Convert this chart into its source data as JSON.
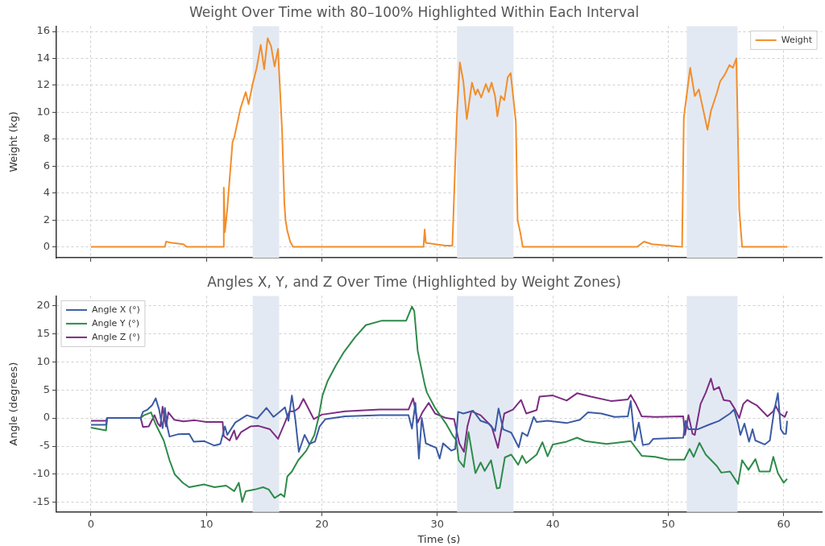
{
  "chart_data": [
    {
      "type": "line",
      "title": "Weight Over Time with 80–100% Highlighted Within Each Interval",
      "ylabel": "Weight (kg)",
      "xlim": [
        -3,
        63.3
      ],
      "xticks": [
        0,
        10,
        20,
        30,
        40,
        50,
        60
      ],
      "ylim": [
        -0.8,
        16.4
      ],
      "yticks": [
        0,
        2,
        4,
        6,
        8,
        10,
        12,
        14,
        16
      ],
      "tick_labels": "y",
      "grid": true,
      "legend": "top right",
      "marker": "none",
      "line_style": "solid",
      "bands": [
        {
          "axis": "x",
          "from": 14.0,
          "to": 16.3,
          "color": "#e3e9f3"
        },
        {
          "axis": "x",
          "from": 31.7,
          "to": 36.6,
          "color": "#e3e9f3"
        },
        {
          "axis": "x",
          "from": 51.6,
          "to": 56.0,
          "color": "#e3e9f3"
        }
      ],
      "series": [
        {
          "name": "Weight",
          "color": "#f28e2b",
          "x": [
            0,
            6.4,
            6.5,
            7,
            8,
            8.3,
            11.45,
            11.5,
            11.6,
            11.8,
            12.26,
            12.4,
            12.6,
            12.95,
            13.4,
            13.65,
            14.0,
            14.35,
            14.7,
            15.0,
            15.3,
            15.6,
            15.9,
            16.2,
            16.3,
            16.55,
            16.75,
            16.85,
            17.0,
            17.25,
            17.5,
            28.8,
            28.9,
            29.0,
            29.8,
            30.7,
            31.3,
            31.7,
            31.95,
            32.25,
            32.55,
            33.0,
            33.3,
            33.5,
            33.8,
            34.2,
            34.45,
            34.7,
            35.0,
            35.2,
            35.5,
            35.8,
            36.1,
            36.35,
            36.6,
            36.8,
            36.95,
            37.2,
            37.4,
            47.3,
            47.9,
            48.6,
            50.0,
            51.2,
            51.35,
            51.9,
            52.3,
            52.65,
            53.0,
            53.4,
            53.7,
            54.2,
            54.5,
            54.9,
            55.3,
            55.6,
            55.9,
            56.0,
            56.15,
            56.4,
            60.3
          ],
          "values": [
            0,
            0,
            0.4,
            0.3,
            0.2,
            0,
            0,
            4.4,
            1.1,
            2.8,
            7.8,
            8.1,
            8.9,
            10.3,
            11.5,
            10.6,
            12.1,
            13.3,
            15.0,
            13.2,
            15.5,
            14.9,
            13.4,
            14.7,
            12.9,
            8.6,
            3.2,
            2.0,
            1.2,
            0.4,
            0,
            0,
            1.3,
            0.3,
            0.2,
            0.1,
            0.1,
            9.9,
            13.7,
            12.3,
            9.5,
            12.2,
            11.3,
            11.7,
            11.1,
            12.1,
            11.5,
            12.2,
            11.2,
            9.7,
            11.2,
            10.9,
            12.6,
            12.9,
            10.9,
            9.3,
            2.0,
            1.0,
            0,
            0,
            0.4,
            0.2,
            0.1,
            0,
            9.6,
            13.3,
            11.2,
            11.7,
            10.3,
            8.7,
            10.1,
            11.4,
            12.3,
            12.8,
            13.5,
            13.3,
            14.0,
            9.9,
            2.8,
            0,
            0
          ]
        }
      ]
    },
    {
      "type": "line",
      "title": "Angles X, Y, and Z Over Time (Highlighted by Weight Zones)",
      "xlabel": "Time (s)",
      "ylabel": "Angle (degrees)",
      "xlim": [
        -3,
        63.3
      ],
      "xticks": [
        0,
        10,
        20,
        30,
        40,
        50,
        60
      ],
      "ylim": [
        -16.7,
        21.7
      ],
      "yticks": [
        -15,
        -10,
        -5,
        0,
        5,
        10,
        15,
        20
      ],
      "grid": true,
      "legend": "top left",
      "marker": "none",
      "line_style": "solid",
      "bands": [
        {
          "axis": "x",
          "from": 14.0,
          "to": 16.3,
          "color": "#e3e9f3"
        },
        {
          "axis": "x",
          "from": 31.7,
          "to": 36.6,
          "color": "#e3e9f3"
        },
        {
          "axis": "x",
          "from": 51.6,
          "to": 56.0,
          "color": "#e3e9f3"
        }
      ],
      "series": [
        {
          "name": "Angle X (°)",
          "color": "#3b5ba5",
          "x": [
            0,
            1.3,
            1.4,
            4.3,
            4.5,
            4.9,
            5.3,
            5.6,
            5.9,
            6.2,
            6.4,
            6.6,
            6.8,
            7.5,
            8.5,
            8.9,
            9.8,
            10.7,
            11.2,
            11.6,
            11.8,
            12.5,
            13.5,
            14.4,
            15.2,
            15.8,
            16.3,
            16.8,
            17.1,
            17.4,
            17.7,
            18.0,
            18.5,
            18.9,
            19.4,
            19.8,
            20.3,
            22,
            25,
            27.5,
            27.8,
            28.1,
            28.4,
            28.65,
            29.0,
            29.9,
            30.2,
            30.5,
            31.2,
            31.55,
            31.8,
            32.25,
            33.1,
            33.75,
            34.45,
            35.0,
            35.3,
            35.7,
            36.4,
            37.05,
            37.35,
            37.8,
            38.35,
            38.6,
            39.55,
            41.2,
            42.35,
            43.05,
            44.2,
            45.35,
            46.5,
            46.75,
            47.1,
            47.45,
            47.8,
            48.35,
            48.7,
            50.0,
            51.3,
            51.5,
            51.75,
            52.55,
            53.5,
            54.4,
            55.35,
            55.7,
            56.05,
            56.25,
            56.6,
            57.0,
            57.3,
            57.55,
            58.35,
            58.8,
            59.15,
            59.5,
            59.75,
            60.0,
            60.2,
            60.3
          ],
          "values": [
            -1.2,
            -1.2,
            0,
            0,
            1.1,
            1.5,
            2.3,
            3.5,
            1.5,
            -1.8,
            1.8,
            -1.5,
            -3.3,
            -2.9,
            -2.8,
            -4.2,
            -4.1,
            -4.9,
            -4.6,
            -1.5,
            -3.0,
            -0.8,
            0.5,
            -0.1,
            1.8,
            0.2,
            1.0,
            1.9,
            -0.5,
            4.0,
            -0.3,
            -6.0,
            -3.0,
            -4.6,
            -4.2,
            -1.5,
            -0.2,
            0.3,
            0.5,
            0.5,
            -1.9,
            2.7,
            -7.2,
            0,
            -4.5,
            -5.3,
            -7.2,
            -4.5,
            -5.8,
            -5.5,
            1.1,
            0.8,
            1.3,
            -0.5,
            -1.0,
            -2.3,
            1.7,
            -2.0,
            -2.6,
            -5.2,
            -2.6,
            -3.2,
            0.2,
            -0.7,
            -0.5,
            -0.9,
            -0.3,
            1.0,
            0.8,
            0.2,
            0.3,
            3.0,
            -4.0,
            -0.8,
            -4.8,
            -4.6,
            -3.7,
            -3.6,
            -3.5,
            -0.5,
            -2.0,
            -2.0,
            -1.2,
            -0.5,
            0.8,
            1.5,
            -1.0,
            -3.0,
            -1.0,
            -4.2,
            -2.0,
            -4.0,
            -4.7,
            -4.0,
            1.0,
            4.4,
            -2.0,
            -2.8,
            -2.8,
            -0.5
          ]
        },
        {
          "name": "Angle Y (°)",
          "color": "#2e8b4a",
          "x": [
            0,
            1.3,
            1.4,
            4.3,
            4.6,
            5.2,
            5.6,
            6.3,
            6.8,
            7.25,
            7.95,
            8.5,
            9.8,
            10.7,
            11.7,
            12.4,
            12.8,
            13.1,
            13.4,
            14.2,
            14.9,
            15.4,
            15.9,
            16.45,
            16.75,
            17.0,
            17.4,
            17.95,
            18.65,
            19.35,
            19.7,
            20.05,
            20.5,
            21.2,
            21.9,
            22.85,
            23.8,
            25.2,
            27.3,
            27.8,
            28.0,
            28.3,
            28.9,
            29.1,
            29.8,
            30.75,
            31.3,
            31.65,
            31.85,
            32.3,
            32.7,
            33.3,
            33.75,
            34.1,
            34.65,
            35.15,
            35.4,
            35.85,
            36.4,
            37.0,
            37.35,
            37.7,
            38.6,
            39.1,
            39.55,
            40.0,
            41.2,
            42.1,
            42.8,
            44.65,
            46.75,
            47.7,
            48.85,
            50.0,
            51.4,
            51.85,
            52.2,
            52.7,
            53.25,
            54.2,
            54.6,
            55.35,
            56.05,
            56.4,
            56.95,
            57.55,
            57.9,
            58.8,
            59.1,
            59.5,
            60.0,
            60.3
          ],
          "values": [
            -1.7,
            -2.2,
            0,
            0,
            0.5,
            1.0,
            -1.1,
            -4.0,
            -7.5,
            -10.0,
            -11.5,
            -12.3,
            -11.8,
            -12.3,
            -12.0,
            -13.0,
            -11.5,
            -14.9,
            -13.0,
            -12.7,
            -12.3,
            -12.7,
            -14.2,
            -13.5,
            -14.0,
            -10.4,
            -9.5,
            -7.5,
            -5.8,
            -3.0,
            0,
            4.0,
            6.6,
            9.3,
            11.7,
            14.3,
            16.5,
            17.3,
            17.3,
            19.8,
            19.0,
            11.9,
            6.0,
            4.5,
            1.8,
            -1.0,
            -3.0,
            -4.0,
            -7.5,
            -8.7,
            -2.5,
            -9.8,
            -7.9,
            -9.4,
            -7.5,
            -12.5,
            -12.4,
            -7.0,
            -6.5,
            -8.3,
            -6.7,
            -8.0,
            -6.5,
            -4.3,
            -6.8,
            -4.7,
            -4.2,
            -3.5,
            -4.1,
            -4.6,
            -4.1,
            -6.7,
            -6.9,
            -7.4,
            -7.4,
            -5.5,
            -6.9,
            -4.4,
            -6.5,
            -8.5,
            -9.7,
            -9.5,
            -11.7,
            -7.5,
            -9.2,
            -7.3,
            -9.5,
            -9.5,
            -6.9,
            -9.8,
            -11.5,
            -10.8
          ]
        },
        {
          "name": "Angle Z (°)",
          "color": "#7b2d80",
          "x": [
            0,
            1.3,
            1.4,
            4.3,
            4.5,
            5.0,
            5.5,
            5.8,
            6.0,
            6.2,
            6.5,
            6.7,
            7.2,
            8,
            9,
            10,
            11.4,
            11.5,
            12.0,
            12.4,
            12.6,
            13.0,
            13.8,
            14.5,
            15.5,
            16.2,
            16.8,
            17.2,
            17.6,
            18.0,
            18.4,
            19.3,
            20,
            22,
            25,
            27.5,
            27.9,
            28.3,
            28.7,
            29.25,
            29.8,
            30.75,
            31.45,
            31.9,
            32.3,
            32.6,
            32.95,
            33.75,
            34.7,
            35.25,
            35.8,
            36.55,
            37.25,
            37.7,
            38.6,
            38.85,
            40.0,
            41.2,
            42.1,
            43.3,
            45.1,
            46.5,
            46.75,
            47.2,
            47.7,
            48.85,
            51.3,
            51.45,
            51.75,
            52.1,
            52.3,
            52.8,
            53.25,
            53.7,
            53.95,
            54.4,
            54.8,
            55.35,
            55.8,
            56.15,
            56.5,
            56.85,
            57.25,
            57.7,
            58.6,
            59.1,
            59.3,
            59.65,
            60.1,
            60.3
          ],
          "values": [
            -0.5,
            -0.5,
            0,
            0,
            -1.6,
            -1.5,
            0.5,
            -1.0,
            -1.5,
            2.0,
            -1.5,
            1.0,
            -0.3,
            -0.6,
            -0.4,
            -0.7,
            -0.7,
            -3.2,
            -4.0,
            -2.2,
            -3.8,
            -2.5,
            -1.5,
            -1.4,
            -2.0,
            -3.7,
            -0.8,
            1.2,
            1.2,
            1.8,
            3.4,
            -0.2,
            0.6,
            1.2,
            1.5,
            1.5,
            3.5,
            -0.8,
            1.0,
            2.7,
            0.8,
            0,
            -0.2,
            -4.5,
            -6.0,
            -1.5,
            1.2,
            0.5,
            -1.5,
            -5.3,
            0.8,
            1.5,
            3.2,
            0.8,
            1.4,
            3.8,
            4.0,
            3.1,
            4.4,
            3.8,
            3.0,
            3.3,
            4.1,
            2.5,
            0.3,
            0.2,
            0.3,
            -3.0,
            0.5,
            -2.8,
            -3.0,
            2.5,
            4.5,
            7.0,
            5.0,
            5.5,
            3.2,
            3.0,
            1.5,
            0,
            2.5,
            3.2,
            2.7,
            2.2,
            0.3,
            1.2,
            2.2,
            0.8,
            0.2,
            1.2
          ]
        }
      ]
    }
  ]
}
